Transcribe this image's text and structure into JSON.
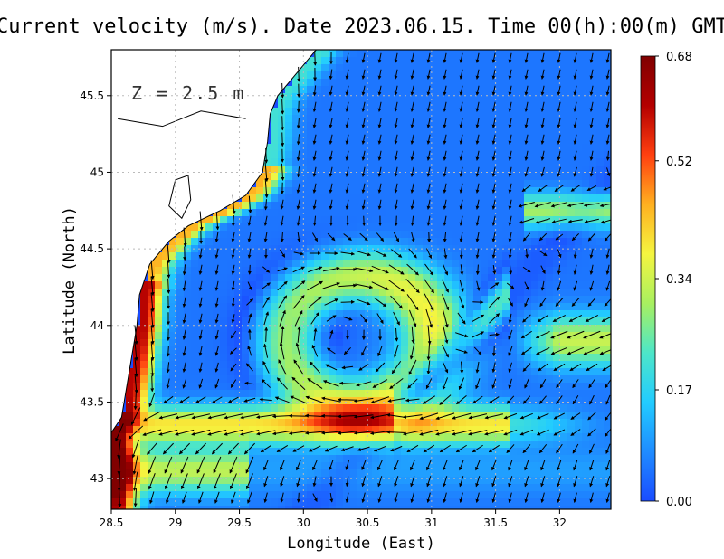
{
  "chart_data": {
    "type": "heatmap",
    "title": "Current velocity (m/s). Date 2023.06.15. Time 00(h):00(m) GMT",
    "depth_label": "Z = 2.5 m",
    "xlabel": "Longitude (East)",
    "ylabel": "Latitude (North)",
    "xlim": [
      28.5,
      32.4
    ],
    "ylim": [
      42.8,
      45.8
    ],
    "x_ticks": [
      "28.5",
      "29",
      "29.5",
      "30",
      "30.5",
      "31",
      "31.5",
      "32"
    ],
    "y_ticks": [
      "43",
      "43.5",
      "44",
      "44.5",
      "45",
      "45.5"
    ],
    "grid": true,
    "colorbar": {
      "min": 0.0,
      "max": 0.68,
      "ticks": [
        "0.00",
        "0.17",
        "0.34",
        "0.52",
        "0.68"
      ],
      "colors": [
        "#1a4cff",
        "#1f8cff",
        "#22ccff",
        "#4de6c8",
        "#a8f060",
        "#f5f540",
        "#ffb020",
        "#ff4010",
        "#b40000",
        "#800000"
      ]
    },
    "features": {
      "coastal_jet_speed": 0.55,
      "eddy_center": [
        30.45,
        43.9
      ],
      "eddy_band_speed": 0.38,
      "background_speed": 0.06
    }
  }
}
